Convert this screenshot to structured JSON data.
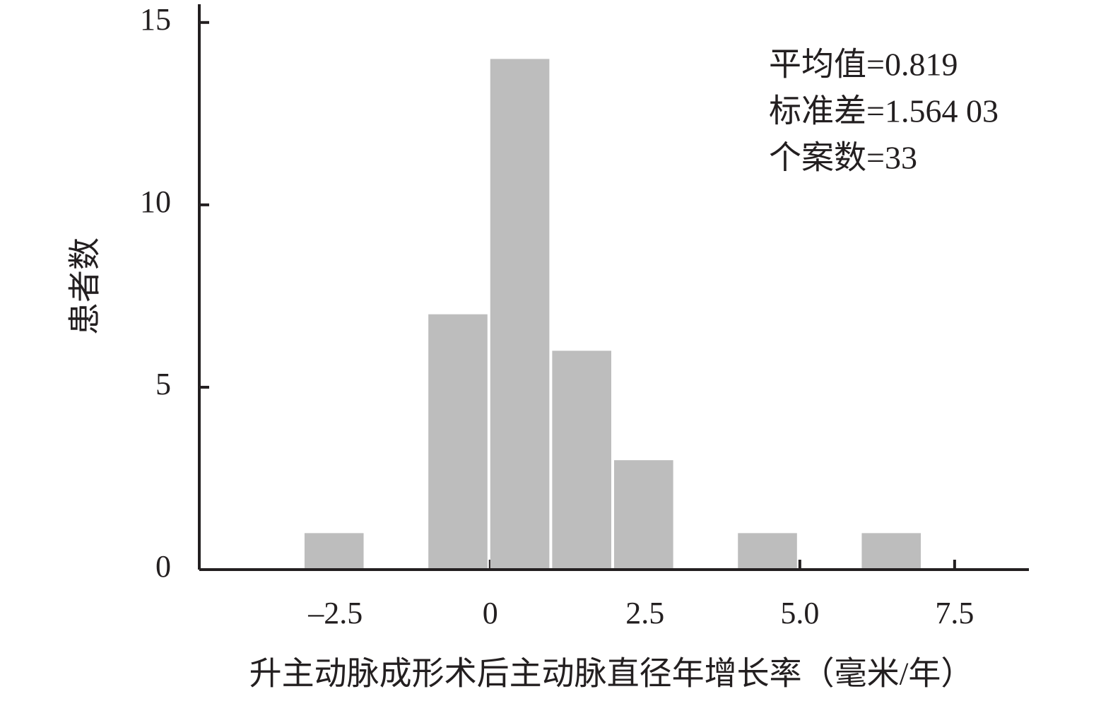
{
  "chart_data": {
    "type": "histogram",
    "xlabel": "升主动脉成形术后主动脉直径年增长率（毫米/年）",
    "ylabel": "患者数",
    "bins": [
      -3,
      -2,
      -1,
      0,
      1,
      2,
      3,
      4,
      5,
      6,
      7
    ],
    "values": [
      1,
      0,
      7,
      14,
      6,
      3,
      0,
      1,
      0,
      1
    ],
    "color": "#bdbdbd",
    "xlim": [
      -4.7,
      8.7
    ],
    "ylim": [
      0,
      15.5
    ],
    "xticks": [
      {
        "value": -2.5,
        "label": "–2.5"
      },
      0,
      2.5,
      {
        "value": 5,
        "label": "5.0"
      },
      7.5
    ],
    "yticks": [
      0,
      5,
      10,
      15
    ],
    "annotations": [
      "平均值=0.819",
      "标准差=1.564 03",
      "个案数=33"
    ]
  }
}
